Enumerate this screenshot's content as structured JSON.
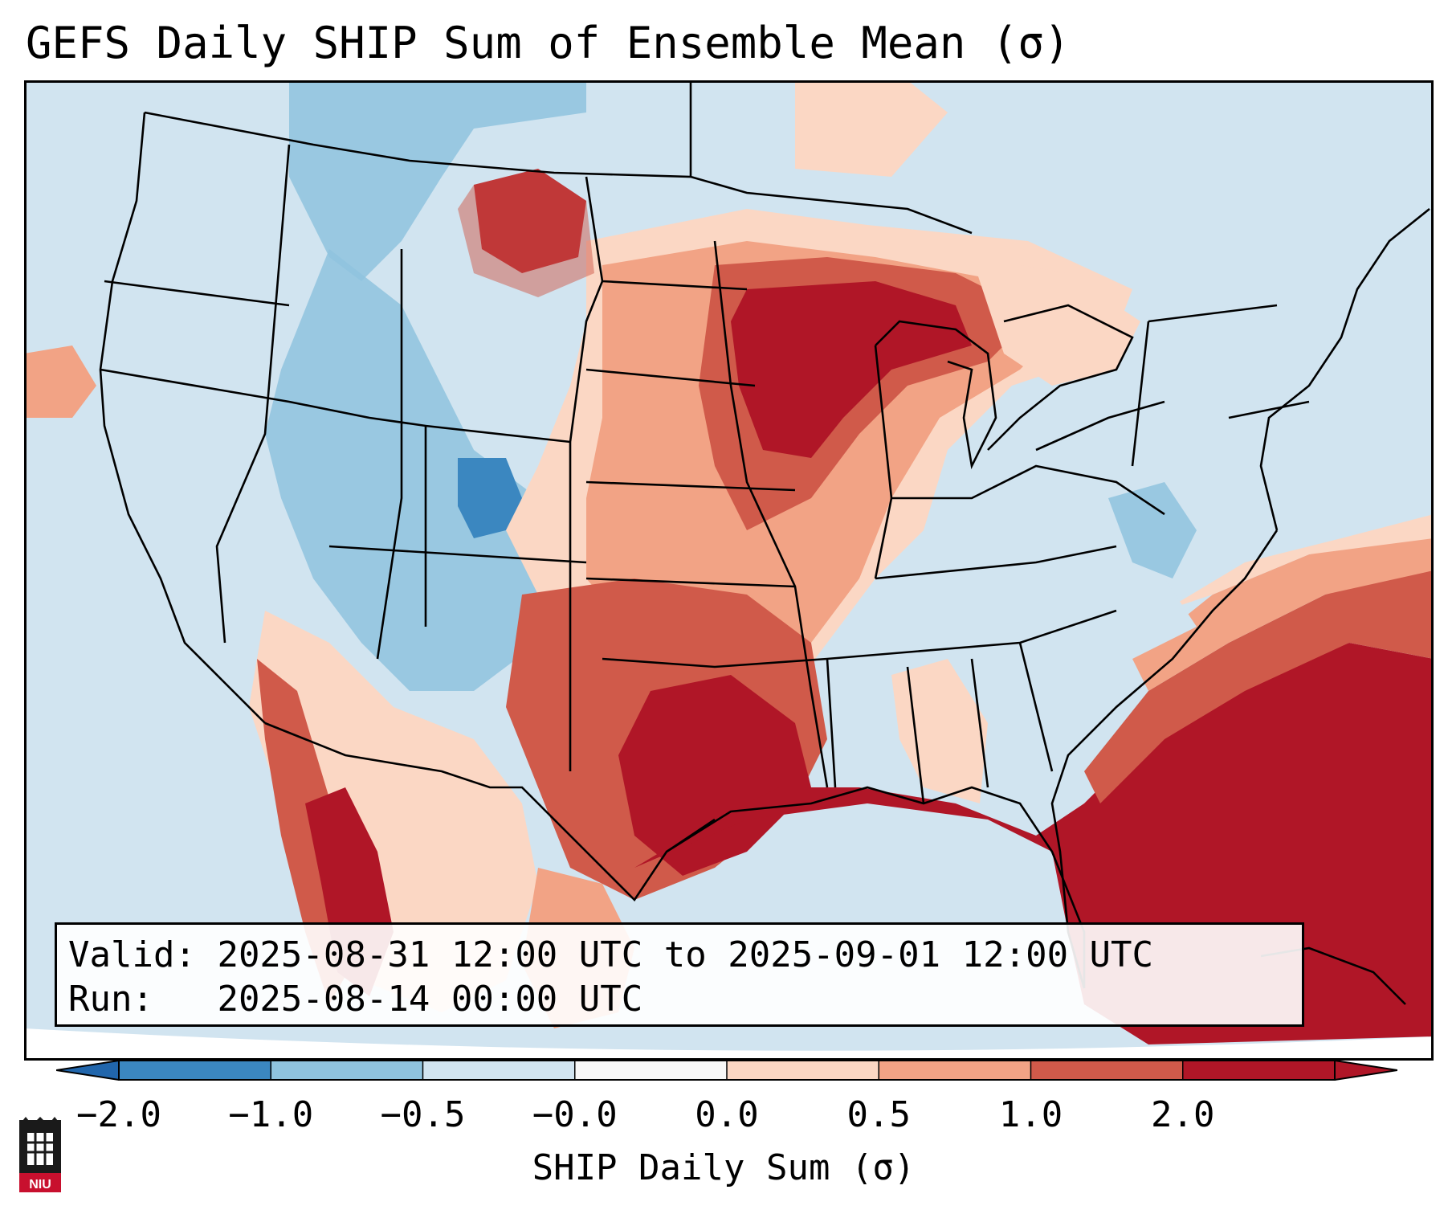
{
  "title": "GEFS Daily SHIP Sum of Ensemble Mean (σ)",
  "info": {
    "valid_label": "Valid:",
    "valid_value": "2025-08-31 12:00 UTC to 2025-09-01 12:00 UTC",
    "run_label": "Run:",
    "run_value": "2025-08-14 00:00 UTC"
  },
  "colorbar": {
    "label": "SHIP Daily Sum (σ)",
    "ticks": [
      "−2.0",
      "−1.0",
      "−0.5",
      "−0.0",
      "0.0",
      "0.5",
      "1.0",
      "2.0"
    ],
    "colors": [
      "#3b87c0",
      "#8fc3de",
      "#d1e4f0",
      "#f7f7f7",
      "#fbd7c4",
      "#f2a385",
      "#d05a4a",
      "#b01627"
    ],
    "extend_low_color": "#2166ac",
    "extend_high_color": "#b01627"
  },
  "map": {
    "domain": "CONUS",
    "field": "SHIP daily sum anomaly (σ)",
    "ocean_color": "#d1e4f0",
    "border_color": "#000000"
  },
  "logo": {
    "text": "NIU",
    "color": "#c8102e"
  }
}
